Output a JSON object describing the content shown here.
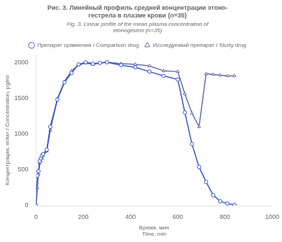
{
  "chart_data": {
    "type": "line",
    "title": "Рис. 3. Линейный профиль средней концентрации этоно-\nгестрела в плазме крови (n=35)",
    "subtitle": "Fig. 3. Linear profile of the mean plasma concentration of\netonogestrel (n=35)",
    "xlabel": "Время, мин\nTime, min",
    "ylabel": "Концентрация, пг/мл / Concentration, pg/ml",
    "x": [
      0,
      5,
      10,
      15,
      20,
      25,
      30,
      45,
      60,
      90,
      120,
      150,
      180,
      210,
      240,
      270,
      300,
      360,
      420,
      480,
      540,
      600,
      630,
      660,
      690,
      720,
      750,
      780,
      810,
      840
    ],
    "series": [
      {
        "name": "Препарат сравнения / Comparison drug",
        "color": "#3355cc",
        "marker": "circle",
        "values": [
          0,
          420,
          480,
          620,
          660,
          700,
          720,
          780,
          1100,
          1480,
          1720,
          1850,
          1970,
          2000,
          1980,
          1990,
          2000,
          1960,
          1930,
          1870,
          1810,
          1760,
          1300,
          860,
          540,
          330,
          145,
          60,
          30,
          10
        ]
      },
      {
        "name": "Исследуемый препарат / Study drug",
        "color": "#6666aa",
        "marker": "triangle",
        "values": [
          0,
          250,
          440,
          590,
          620,
          660,
          700,
          760,
          1050,
          1490,
          1730,
          1880,
          1960,
          1990,
          1970,
          1990,
          2000,
          1980,
          1970,
          1950,
          1880,
          1870,
          1560,
          1290,
          1100,
          1840,
          1830,
          1820,
          1810,
          1810
        ]
      }
    ],
    "xlim": [
      0,
      1000
    ],
    "xticks": [
      0,
      200,
      400,
      600,
      800,
      1000
    ],
    "ylim": [
      0,
      2100
    ],
    "yticks": [
      0,
      500,
      1000,
      1500,
      2000
    ],
    "grid": false,
    "legend": "top"
  }
}
